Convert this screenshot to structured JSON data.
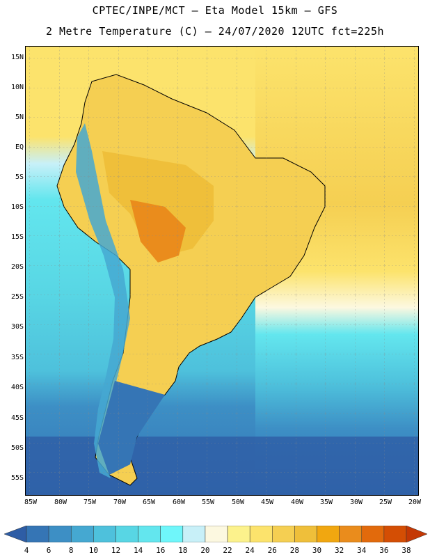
{
  "header": {
    "line1": "CPTEC/INPE/MCT –  Eta Model 15km – GFS",
    "line2": "2 Metre Temperature (C) – 24/07/2020 12UTC fct=225h"
  },
  "map": {
    "region": "South America",
    "variable": "2 Metre Temperature",
    "units": "C",
    "lat_labels": [
      "15N",
      "10N",
      "5N",
      "EQ",
      "5S",
      "10S",
      "15S",
      "20S",
      "25S",
      "30S",
      "35S",
      "40S",
      "45S",
      "50S",
      "55S"
    ],
    "lon_labels": [
      "85W",
      "80W",
      "75W",
      "70W",
      "65W",
      "60W",
      "55W",
      "50W",
      "45W",
      "40W",
      "35W",
      "30W",
      "25W",
      "20W"
    ],
    "lat_range": [
      16.5,
      -59.5
    ],
    "lon_range": [
      -86.0,
      -19.5
    ]
  },
  "colorbar": {
    "levels": [
      "4",
      "6",
      "8",
      "10",
      "12",
      "14",
      "16",
      "18",
      "20",
      "22",
      "24",
      "26",
      "28",
      "30",
      "32",
      "34",
      "36",
      "38"
    ],
    "colors": [
      "#2e5da5",
      "#3575b5",
      "#3d8fc5",
      "#45a8d1",
      "#4ec1dc",
      "#58d6e4",
      "#63e6ee",
      "#6ff6fa",
      "#c8f0f8",
      "#fcf8e0",
      "#fcf28c",
      "#fce36c",
      "#f5cf52",
      "#efbf3a",
      "#f1a710",
      "#ea8c1c",
      "#e26a0c",
      "#d44e04",
      "#c43804"
    ]
  }
}
